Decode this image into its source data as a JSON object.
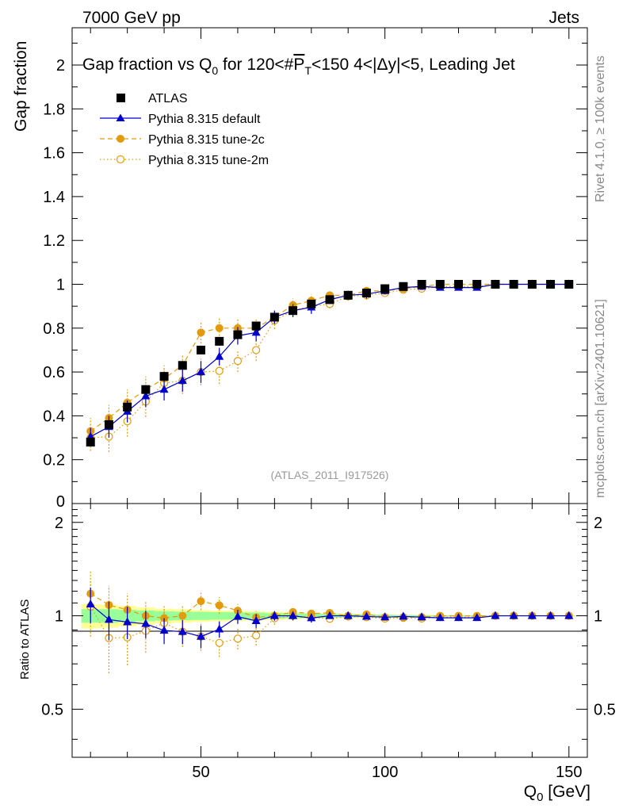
{
  "header": {
    "left": "7000 GeV pp",
    "right": "Jets",
    "side_top": "Rivet 4.1.0, ≥ 100k events",
    "side_bottom": "mcplots.cern.ch [arXiv:2401.10621]",
    "analysis_id": "(ATLAS_2011_I917526)"
  },
  "colors": {
    "atlas": "#000000",
    "default": "#0000cc",
    "tune2c": "#e19b0c",
    "tune2m": "#e19b0c",
    "band_green": "#99ff99",
    "band_yellow": "#ffff99"
  },
  "chart_data": {
    "type": "line",
    "title": "Gap fraction vs Q0 for 120<#P_T<150  4<|Δy|<5, Leading Jet",
    "title_parts": {
      "a": "Gap fraction vs Q",
      "a_sub": "0",
      "b": " for 120<#",
      "p": "P",
      "p_sub": "T",
      "c": "<150  4<|Δy|<5, Leading Jet"
    },
    "xlabel": "Q",
    "xlabel_sub": "0",
    "xlabel_unit": " [GeV]",
    "ylabel": "Gap fraction",
    "ratio_ylabel": "Ratio to ATLAS",
    "xlim": [
      15,
      155
    ],
    "ylim": [
      0,
      2.17
    ],
    "ratio_ylim": [
      0.35,
      2.3
    ],
    "x_ticks": [
      "50",
      "100",
      "150"
    ],
    "y_ticks": [
      "0",
      "0.2",
      "0.4",
      "0.6",
      "0.8",
      "1",
      "1.2",
      "1.4",
      "1.6",
      "1.8",
      "2"
    ],
    "ratio_ticks": [
      "0.5",
      "1",
      "2"
    ],
    "ratio_ticks_right": [
      "0.5",
      "1",
      "2"
    ],
    "x": [
      20,
      25,
      30,
      35,
      40,
      45,
      50,
      55,
      60,
      65,
      70,
      75,
      80,
      85,
      90,
      95,
      100,
      105,
      110,
      115,
      120,
      125,
      130,
      135,
      140,
      145,
      150
    ],
    "series": [
      {
        "name": "ATLAS",
        "values": [
          0.28,
          0.36,
          0.44,
          0.52,
          0.58,
          0.63,
          0.7,
          0.74,
          0.77,
          0.81,
          0.85,
          0.88,
          0.91,
          0.93,
          0.95,
          0.96,
          0.98,
          0.99,
          1.0,
          1.0,
          1.0,
          1.0,
          1.0,
          1.0,
          1.0,
          1.0,
          1.0
        ],
        "errors": [
          0.02,
          0.02,
          0.02,
          0.02,
          0.02,
          0.02,
          0.02,
          0.02,
          0.02,
          0.02,
          0.015,
          0.015,
          0.01,
          0.01,
          0.01,
          0.01,
          0.005,
          0.005,
          0.003,
          0.003,
          0.003,
          0.003,
          0.002,
          0.002,
          0.002,
          0.002,
          0.002
        ],
        "ratio_band_green": [
          0.05,
          0.05,
          0.045,
          0.04,
          0.035,
          0.032,
          0.03,
          0.028,
          0.026,
          0.024,
          0.02,
          0.018,
          0.016,
          0.014,
          0.012,
          0.01,
          0.008,
          0.006,
          0.005,
          0.004,
          0.004,
          0.003,
          0.003,
          0.002,
          0.002,
          0.002,
          0.002
        ],
        "ratio_band_yellow": [
          0.09,
          0.085,
          0.075,
          0.065,
          0.055,
          0.05,
          0.045,
          0.04,
          0.038,
          0.035,
          0.03,
          0.025,
          0.022,
          0.018,
          0.015,
          0.012,
          0.01,
          0.008,
          0.007,
          0.006,
          0.005,
          0.005,
          0.004,
          0.004,
          0.003,
          0.003,
          0.003
        ]
      },
      {
        "name": "Pythia 8.315 default",
        "values": [
          0.305,
          0.35,
          0.42,
          0.49,
          0.52,
          0.56,
          0.6,
          0.67,
          0.765,
          0.78,
          0.85,
          0.88,
          0.895,
          0.93,
          0.95,
          0.955,
          0.97,
          0.985,
          0.99,
          0.985,
          0.985,
          0.985,
          1.0,
          1.0,
          1.0,
          1.0,
          1.0
        ],
        "errors": [
          0.04,
          0.05,
          0.05,
          0.05,
          0.05,
          0.05,
          0.05,
          0.04,
          0.04,
          0.04,
          0.03,
          0.03,
          0.03,
          0.02,
          0.02,
          0.02,
          0.015,
          0.01,
          0.01,
          0.01,
          0.005,
          0.005,
          0.003,
          0.003,
          0.003,
          0.003,
          0.003
        ]
      },
      {
        "name": "Pythia 8.315 tune-2c",
        "values": [
          0.33,
          0.39,
          0.46,
          0.52,
          0.57,
          0.63,
          0.78,
          0.8,
          0.8,
          0.8,
          0.85,
          0.905,
          0.925,
          0.95,
          0.95,
          0.97,
          0.97,
          0.98,
          0.99,
          1.0,
          1.0,
          1.0,
          1.0,
          1.0,
          1.0,
          1.0,
          1.0
        ],
        "errors": [
          0.06,
          0.06,
          0.06,
          0.06,
          0.06,
          0.05,
          0.05,
          0.05,
          0.04,
          0.04,
          0.03,
          0.03,
          0.03,
          0.02,
          0.02,
          0.02,
          0.015,
          0.01,
          0.01,
          0.005,
          0.005,
          0.005,
          0.003,
          0.003,
          0.003,
          0.003,
          0.003
        ]
      },
      {
        "name": "Pythia 8.315 tune-2m",
        "values": [
          0.3,
          0.305,
          0.375,
          0.465,
          0.55,
          0.56,
          0.6,
          0.605,
          0.65,
          0.7,
          0.835,
          0.88,
          0.9,
          0.91,
          0.945,
          0.95,
          0.96,
          0.975,
          0.98,
          0.99,
          0.99,
          0.99,
          1.0,
          1.0,
          1.0,
          1.0,
          1.0
        ],
        "errors": [
          0.06,
          0.07,
          0.07,
          0.07,
          0.06,
          0.06,
          0.06,
          0.06,
          0.05,
          0.05,
          0.04,
          0.03,
          0.03,
          0.02,
          0.02,
          0.02,
          0.015,
          0.01,
          0.01,
          0.005,
          0.005,
          0.005,
          0.003,
          0.003,
          0.003,
          0.003,
          0.003
        ]
      }
    ],
    "legend": [
      "ATLAS",
      "Pythia 8.315 default",
      "Pythia 8.315 tune-2c",
      "Pythia 8.315 tune-2m"
    ],
    "legend_position": "top-left"
  }
}
